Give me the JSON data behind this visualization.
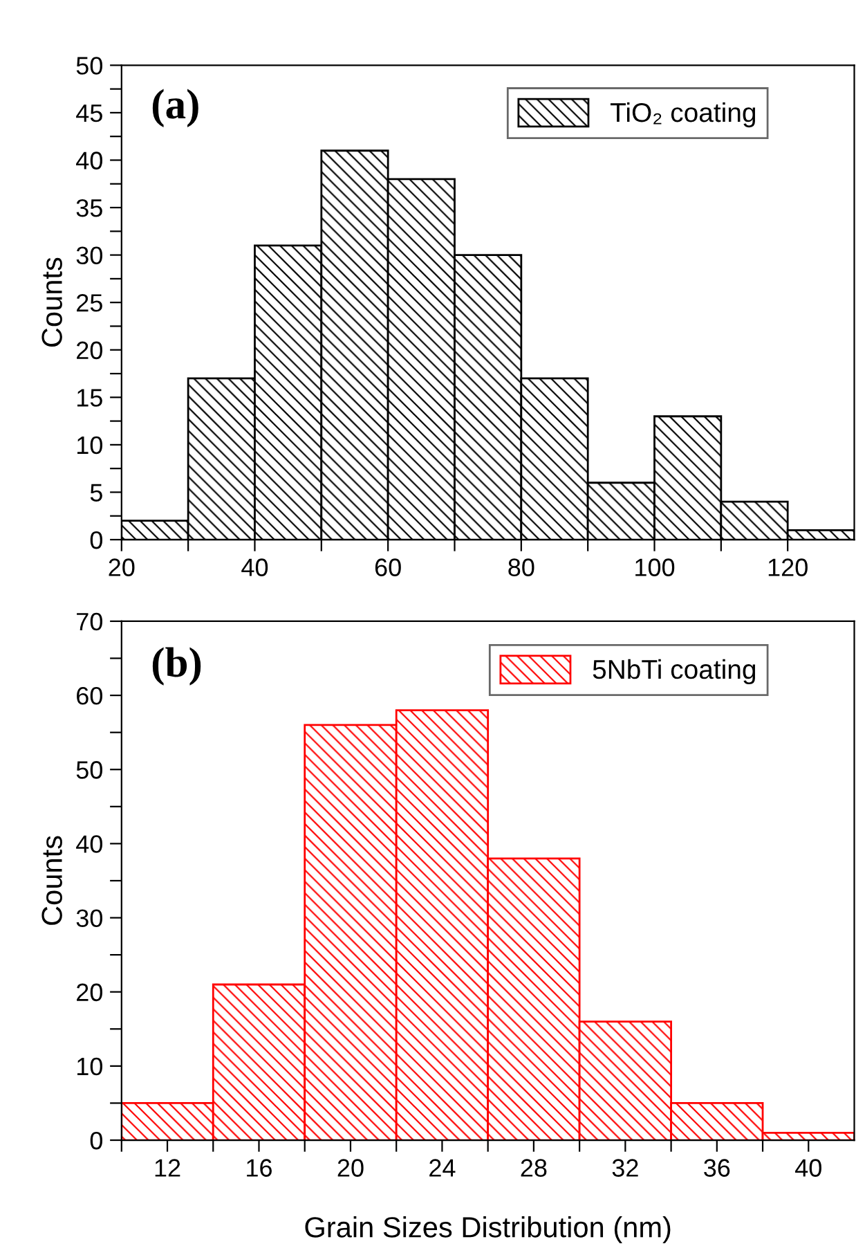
{
  "chart_data": [
    {
      "type": "histogram",
      "ylabel": "Counts",
      "annotations": [
        "(a)"
      ],
      "legend": "top right",
      "grid": false,
      "bins": [
        20,
        30,
        40,
        50,
        60,
        70,
        80,
        90,
        100,
        110,
        120,
        130
      ],
      "series": [
        {
          "name": "TiO₂ coating",
          "color": "#000000",
          "values": [
            2,
            17,
            31,
            41,
            38,
            30,
            17,
            6,
            13,
            4,
            1
          ]
        }
      ],
      "xlim": [
        20,
        130
      ],
      "ylim": [
        0,
        50
      ],
      "xticks": [
        20,
        {
          "value": 30,
          "label": null
        },
        40,
        {
          "value": 50,
          "label": null
        },
        60,
        {
          "value": 70,
          "label": null
        },
        80,
        {
          "value": 90,
          "label": null
        },
        100,
        {
          "value": 110,
          "label": null
        },
        120
      ],
      "yticks": [
        0,
        {
          "value": 2.5,
          "label": null
        },
        5,
        {
          "value": 7.5,
          "label": null
        },
        10,
        {
          "value": 12.5,
          "label": null
        },
        15,
        {
          "value": 17.5,
          "label": null
        },
        20,
        {
          "value": 22.5,
          "label": null
        },
        25,
        {
          "value": 27.5,
          "label": null
        },
        30,
        {
          "value": 32.5,
          "label": null
        },
        35,
        {
          "value": 37.5,
          "label": null
        },
        40,
        {
          "value": 42.5,
          "label": null
        },
        45,
        {
          "value": 47.5,
          "label": null
        },
        50
      ]
    },
    {
      "type": "histogram",
      "ylabel": "Counts",
      "xlabel": "Grain Sizes Distribution (nm)",
      "annotations": [
        "(b)"
      ],
      "legend": "top right",
      "grid": false,
      "bins": [
        10,
        14,
        18,
        22,
        26,
        30,
        34,
        38,
        42
      ],
      "series": [
        {
          "name": "5NbTi coating",
          "color": "#ff0000",
          "values": [
            5,
            21,
            56,
            58,
            38,
            16,
            5,
            1
          ]
        }
      ],
      "xlim": [
        10,
        42
      ],
      "ylim": [
        0,
        70
      ],
      "xticks": [
        {
          "value": 10,
          "label": null
        },
        12,
        {
          "value": 14,
          "label": null
        },
        16,
        {
          "value": 18,
          "label": null
        },
        20,
        {
          "value": 22,
          "label": null
        },
        24,
        {
          "value": 26,
          "label": null
        },
        28,
        {
          "value": 30,
          "label": null
        },
        32,
        {
          "value": 34,
          "label": null
        },
        36,
        {
          "value": 38,
          "label": null
        },
        40
      ],
      "yticks": [
        0,
        {
          "value": 5,
          "label": null
        },
        10,
        {
          "value": 15,
          "label": null
        },
        20,
        {
          "value": 25,
          "label": null
        },
        30,
        {
          "value": 35,
          "label": null
        },
        40,
        {
          "value": 45,
          "label": null
        },
        50,
        {
          "value": 55,
          "label": null
        },
        60,
        {
          "value": 65,
          "label": null
        },
        70
      ]
    }
  ]
}
